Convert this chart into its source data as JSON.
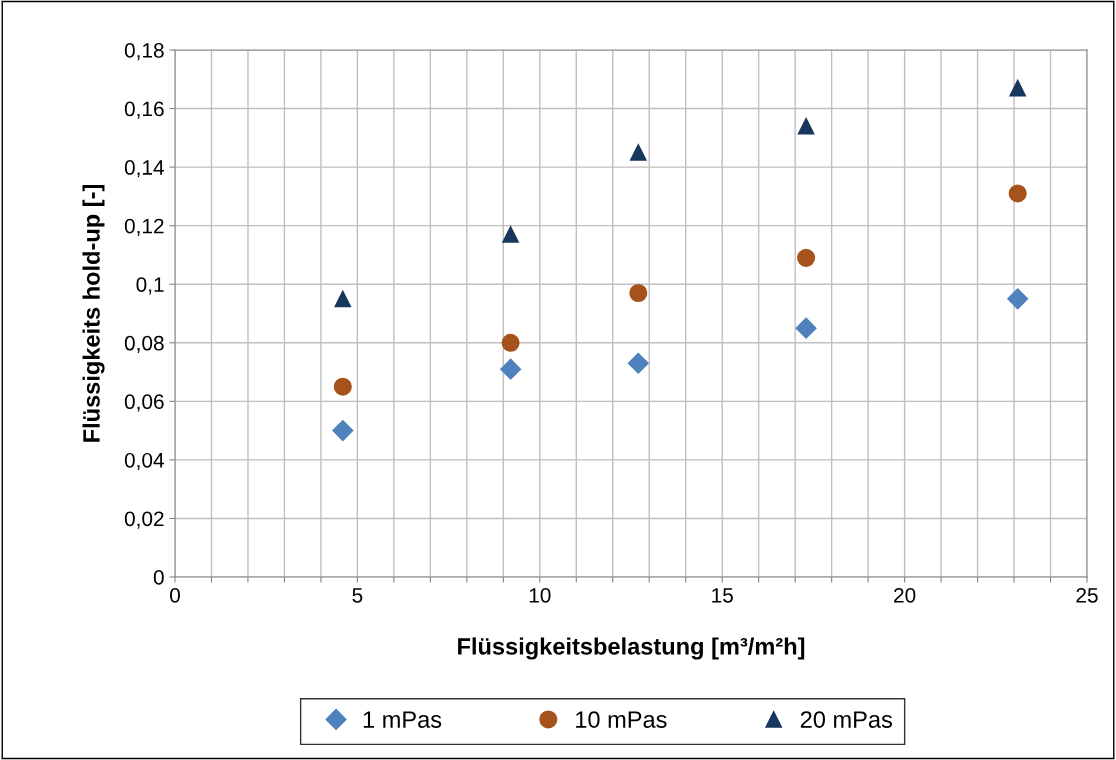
{
  "chart_data": {
    "type": "scatter",
    "xlabel": "Flüssigkeitsbelastung [m³/m²h]",
    "ylabel": "Flüssigkeits hold-up [-]",
    "x": [
      4.6,
      9.2,
      12.7,
      17.3,
      23.1
    ],
    "series": [
      {
        "name": "1 mPas",
        "color": "#4f81bd",
        "marker": "diamond",
        "values": [
          0.05,
          0.071,
          0.073,
          0.085,
          0.095
        ]
      },
      {
        "name": "10 mPas",
        "color": "#a5521c",
        "marker": "circle",
        "values": [
          0.065,
          0.08,
          0.097,
          0.109,
          0.131
        ]
      },
      {
        "name": "20 mPas",
        "color": "#17375e",
        "marker": "triangle",
        "values": [
          0.095,
          0.117,
          0.145,
          0.154,
          0.167
        ]
      }
    ],
    "xlim": [
      0,
      25
    ],
    "xticks": [
      0,
      {
        "value": 1,
        "label": null
      },
      {
        "value": 2,
        "label": null
      },
      {
        "value": 3,
        "label": null
      },
      {
        "value": 4,
        "label": null
      },
      5,
      {
        "value": 6,
        "label": null
      },
      {
        "value": 7,
        "label": null
      },
      {
        "value": 8,
        "label": null
      },
      {
        "value": 9,
        "label": null
      },
      10,
      {
        "value": 11,
        "label": null
      },
      {
        "value": 12,
        "label": null
      },
      {
        "value": 13,
        "label": null
      },
      {
        "value": 14,
        "label": null
      },
      15,
      {
        "value": 16,
        "label": null
      },
      {
        "value": 17,
        "label": null
      },
      {
        "value": 18,
        "label": null
      },
      {
        "value": 19,
        "label": null
      },
      20,
      {
        "value": 21,
        "label": null
      },
      {
        "value": 22,
        "label": null
      },
      {
        "value": 23,
        "label": null
      },
      {
        "value": 24,
        "label": null
      },
      25
    ],
    "ylim": [
      0,
      0.18
    ],
    "yticks": [
      0,
      {
        "value": 0.02,
        "label": "0,02"
      },
      {
        "value": 0.04,
        "label": "0,04"
      },
      {
        "value": 0.06,
        "label": "0,06"
      },
      {
        "value": 0.08,
        "label": "0,08"
      },
      {
        "value": 0.1,
        "label": "0,1"
      },
      {
        "value": 0.12,
        "label": "0,12"
      },
      {
        "value": 0.14,
        "label": "0,14"
      },
      {
        "value": 0.16,
        "label": "0,16"
      },
      {
        "value": 0.18,
        "label": "0,18"
      }
    ],
    "grid": true,
    "legend": "bottom"
  }
}
